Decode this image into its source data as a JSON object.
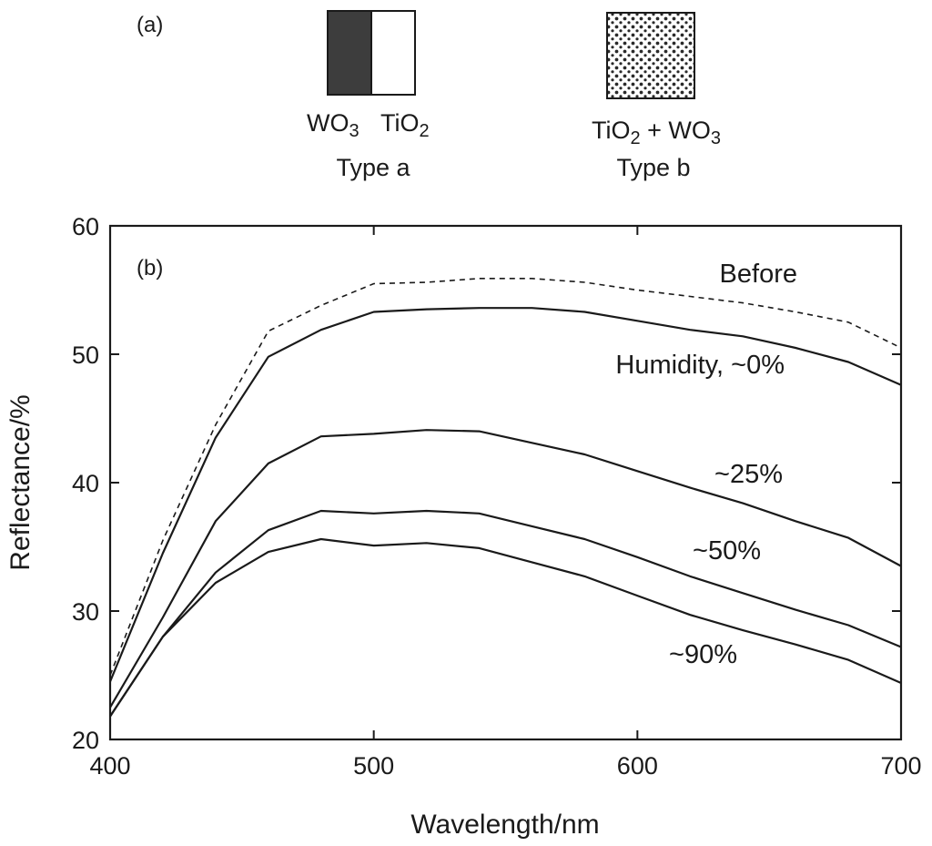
{
  "panel_a": {
    "label": "(a)",
    "type_a": {
      "left_layer": "WO3",
      "right_layer": "TiO2",
      "caption": "Type a",
      "left_color": "#3d3d3d",
      "right_color": "#ffffff"
    },
    "type_b": {
      "mixture": "TiO2 + WO3",
      "caption": "Type b"
    }
  },
  "chart_data": {
    "type": "line",
    "panel_label": "(b)",
    "xlabel": "Wavelength/nm",
    "ylabel": "Reflectance/%",
    "xlim": [
      400,
      700
    ],
    "ylim": [
      20,
      60
    ],
    "xticks": [
      400,
      500,
      600,
      700
    ],
    "yticks": [
      20,
      30,
      40,
      50,
      60
    ],
    "grid": false,
    "series": [
      {
        "name": "Before",
        "label": "Before",
        "style": "dashed",
        "x": [
          400,
          420,
          440,
          460,
          480,
          500,
          520,
          540,
          560,
          580,
          600,
          620,
          640,
          660,
          680,
          700
        ],
        "y": [
          25.0,
          35.5,
          44.5,
          51.8,
          53.8,
          55.5,
          55.6,
          55.9,
          55.9,
          55.6,
          55.0,
          54.5,
          54.0,
          53.3,
          52.5,
          50.5
        ]
      },
      {
        "name": "Humidity ~0%",
        "label": "Humidity, ~0%",
        "style": "solid",
        "x": [
          400,
          420,
          440,
          460,
          480,
          500,
          520,
          540,
          560,
          580,
          600,
          620,
          640,
          660,
          680,
          700
        ],
        "y": [
          24.5,
          34.5,
          43.5,
          49.8,
          51.9,
          53.3,
          53.5,
          53.6,
          53.6,
          53.3,
          52.6,
          51.9,
          51.4,
          50.5,
          49.4,
          47.6
        ]
      },
      {
        "name": "~25%",
        "label": "~25%",
        "style": "solid",
        "x": [
          400,
          420,
          440,
          460,
          480,
          500,
          520,
          540,
          560,
          580,
          600,
          620,
          640,
          660,
          680,
          700
        ],
        "y": [
          22.5,
          29.5,
          37.0,
          41.5,
          43.6,
          43.8,
          44.1,
          44.0,
          43.1,
          42.2,
          40.9,
          39.6,
          38.4,
          37.0,
          35.7,
          33.5
        ]
      },
      {
        "name": "~50%",
        "label": "~50%",
        "style": "solid",
        "x": [
          400,
          420,
          440,
          460,
          480,
          500,
          520,
          540,
          560,
          580,
          600,
          620,
          640,
          660,
          680,
          700
        ],
        "y": [
          21.8,
          28.0,
          33.0,
          36.3,
          37.8,
          37.6,
          37.8,
          37.6,
          36.6,
          35.6,
          34.2,
          32.7,
          31.4,
          30.1,
          28.9,
          27.2
        ]
      },
      {
        "name": "~90%",
        "label": "~90%",
        "style": "solid",
        "x": [
          400,
          420,
          440,
          460,
          480,
          500,
          520,
          540,
          560,
          580,
          600,
          620,
          640,
          660,
          680,
          700
        ],
        "y": [
          21.8,
          28.0,
          32.2,
          34.6,
          35.6,
          35.1,
          35.3,
          34.9,
          33.8,
          32.7,
          31.2,
          29.7,
          28.5,
          27.4,
          26.2,
          24.4
        ]
      }
    ]
  }
}
